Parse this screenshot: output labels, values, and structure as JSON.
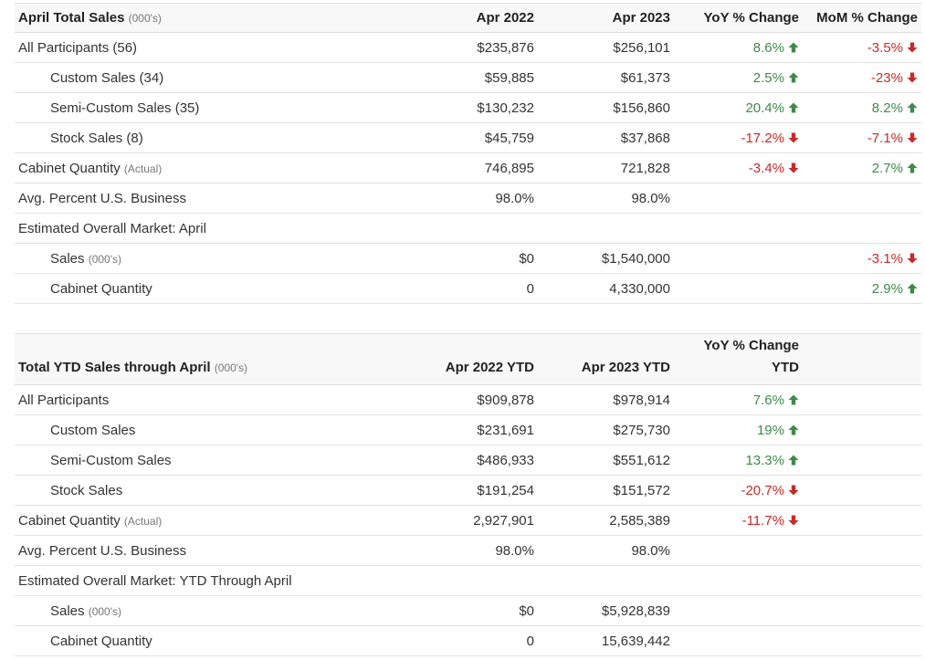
{
  "monthly": {
    "header": {
      "title": "April Total Sales",
      "title_unit": "(000's)",
      "col_prev": "Apr 2022",
      "col_curr": "Apr 2023",
      "col_yoy": "YoY % Change",
      "col_mom": "MoM % Change"
    },
    "rows": [
      {
        "label": "All Participants (56)",
        "prev": "$235,876",
        "curr": "$256,101",
        "yoy": "8.6%",
        "yoy_dir": "up",
        "mom": "-3.5%",
        "mom_dir": "down"
      },
      {
        "label": "Custom Sales (34)",
        "prev": "$59,885",
        "curr": "$61,373",
        "yoy": "2.5%",
        "yoy_dir": "up",
        "mom": "-23%",
        "mom_dir": "down"
      },
      {
        "label": "Semi-Custom Sales (35)",
        "prev": "$130,232",
        "curr": "$156,860",
        "yoy": "20.4%",
        "yoy_dir": "up",
        "mom": "8.2%",
        "mom_dir": "up"
      },
      {
        "label": "Stock Sales (8)",
        "prev": "$45,759",
        "curr": "$37,868",
        "yoy": "-17.2%",
        "yoy_dir": "down",
        "mom": "-7.1%",
        "mom_dir": "down"
      },
      {
        "label": "Cabinet Quantity",
        "label_note": "(Actual)",
        "prev": "746,895",
        "curr": "721,828",
        "yoy": "-3.4%",
        "yoy_dir": "down",
        "mom": "2.7%",
        "mom_dir": "up"
      },
      {
        "label": "Avg. Percent U.S. Business",
        "prev": "98.0%",
        "curr": "98.0%"
      },
      {
        "label": "Estimated Overall Market: April"
      },
      {
        "label": "Sales",
        "label_note": "(000's)",
        "prev": "$0",
        "curr": "$1,540,000",
        "mom": "-3.1%",
        "mom_dir": "down"
      },
      {
        "label": "Cabinet Quantity",
        "prev": "0",
        "curr": "4,330,000",
        "mom": "2.9%",
        "mom_dir": "up"
      }
    ]
  },
  "ytd": {
    "header": {
      "title": "Total YTD Sales through April",
      "title_unit": "(000's)",
      "col_prev": "Apr 2022 YTD",
      "col_curr": "Apr 2023 YTD",
      "col_yoy_line1": "YoY % Change",
      "col_yoy_line2": "YTD"
    },
    "rows": [
      {
        "label": "All Participants",
        "prev": "$909,878",
        "curr": "$978,914",
        "yoy": "7.6%",
        "yoy_dir": "up"
      },
      {
        "label": "Custom Sales",
        "prev": "$231,691",
        "curr": "$275,730",
        "yoy": "19%",
        "yoy_dir": "up"
      },
      {
        "label": "Semi-Custom Sales",
        "prev": "$486,933",
        "curr": "$551,612",
        "yoy": "13.3%",
        "yoy_dir": "up"
      },
      {
        "label": "Stock Sales",
        "prev": "$191,254",
        "curr": "$151,572",
        "yoy": "-20.7%",
        "yoy_dir": "down"
      },
      {
        "label": "Cabinet Quantity",
        "label_note": "(Actual)",
        "prev": "2,927,901",
        "curr": "2,585,389",
        "yoy": "-11.7%",
        "yoy_dir": "down"
      },
      {
        "label": "Avg. Percent U.S. Business",
        "prev": "98.0%",
        "curr": "98.0%"
      },
      {
        "label": "Estimated Overall Market: YTD Through April"
      },
      {
        "label": "Sales",
        "label_note": "(000's)",
        "prev": "$0",
        "curr": "$5,928,839"
      },
      {
        "label": "Cabinet Quantity",
        "prev": "0",
        "curr": "15,639,442"
      }
    ]
  },
  "colors": {
    "up": "#3f8a4a",
    "down": "#c62a2a"
  },
  "icons": {
    "up": "arrow-up-icon",
    "down": "arrow-down-icon"
  }
}
